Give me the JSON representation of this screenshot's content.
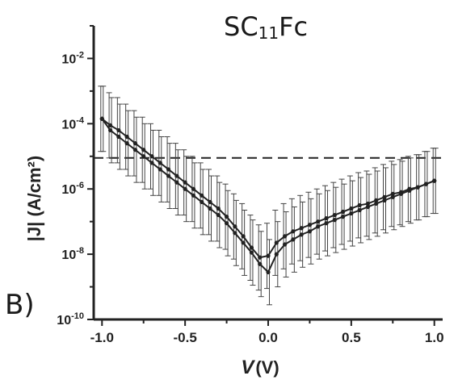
{
  "chart_data": {
    "type": "line",
    "title": "SC11Fc",
    "title_main": "SC",
    "title_sub": "11",
    "title_suffix": "Fc",
    "panel_label": "B)",
    "xlabel_var": "V",
    "xlabel_unit": "(V)",
    "ylabel": "|J| (A/cm²)",
    "xlim": [
      -1.05,
      1.05
    ],
    "ylim_log10": [
      -10,
      -1
    ],
    "y_scale": "log",
    "x_ticks": [
      "-1.0",
      "-0.5",
      "0.0",
      "0.5",
      "1.0"
    ],
    "y_ticks": [
      {
        "base": "10",
        "exp": "-2"
      },
      {
        "base": "10",
        "exp": "-4"
      },
      {
        "base": "10",
        "exp": "-6"
      },
      {
        "base": "10",
        "exp": "-8"
      },
      {
        "base": "10",
        "exp": "-10"
      }
    ],
    "reference_line": {
      "log10_y": -5.05,
      "style": "dashed"
    },
    "series": [
      {
        "x": [
          -1.0,
          -0.95,
          -0.9,
          -0.85,
          -0.8,
          -0.75,
          -0.7,
          -0.65,
          -0.6,
          -0.55,
          -0.5,
          -0.45,
          -0.4,
          -0.35,
          -0.3,
          -0.25,
          -0.2,
          -0.15,
          -0.1,
          -0.05,
          0.0,
          0.05,
          0.1,
          0.15,
          0.2,
          0.25,
          0.3,
          0.35,
          0.4,
          0.45,
          0.5,
          0.55,
          0.6,
          0.65,
          0.7,
          0.75,
          0.8,
          0.85,
          0.9,
          0.95,
          1.0
        ],
        "log10_y": [
          -3.85,
          -4.05,
          -4.2,
          -4.4,
          -4.6,
          -4.8,
          -5.0,
          -5.2,
          -5.4,
          -5.6,
          -5.8,
          -6.0,
          -6.2,
          -6.4,
          -6.6,
          -6.85,
          -7.15,
          -7.45,
          -7.8,
          -8.1,
          -8.05,
          -7.65,
          -7.45,
          -7.3,
          -7.2,
          -7.1,
          -7.0,
          -6.9,
          -6.8,
          -6.7,
          -6.6,
          -6.5,
          -6.45,
          -6.35,
          -6.25,
          -6.15,
          -6.1,
          -6.0,
          -5.95,
          -5.85,
          -5.75
        ],
        "log10_err": [
          1.0,
          1.0,
          1.0,
          1.0,
          1.0,
          1.0,
          1.0,
          1.0,
          1.0,
          1.0,
          1.0,
          1.0,
          1.0,
          1.0,
          1.0,
          1.0,
          1.0,
          1.0,
          1.0,
          1.0,
          1.0,
          1.0,
          1.0,
          1.0,
          1.0,
          1.0,
          1.0,
          1.0,
          1.0,
          1.0,
          1.0,
          1.0,
          1.0,
          1.0,
          1.0,
          1.0,
          1.0,
          1.0,
          1.0,
          1.0,
          1.0
        ]
      },
      {
        "x": [
          -1.0,
          -0.95,
          -0.9,
          -0.85,
          -0.8,
          -0.75,
          -0.7,
          -0.65,
          -0.6,
          -0.55,
          -0.5,
          -0.45,
          -0.4,
          -0.35,
          -0.3,
          -0.25,
          -0.2,
          -0.15,
          -0.1,
          -0.05,
          0.0,
          0.05,
          0.1,
          0.15,
          0.2,
          0.25,
          0.3,
          0.35,
          0.4,
          0.45,
          0.5,
          0.55,
          0.6,
          0.65,
          0.7,
          0.75,
          0.8,
          0.85,
          0.9,
          0.95,
          1.0
        ],
        "log10_y": [
          -3.85,
          -4.2,
          -4.4,
          -4.6,
          -4.8,
          -5.0,
          -5.2,
          -5.4,
          -5.6,
          -5.8,
          -6.0,
          -6.2,
          -6.4,
          -6.6,
          -6.8,
          -7.05,
          -7.35,
          -7.65,
          -7.95,
          -8.3,
          -8.55,
          -8.0,
          -7.7,
          -7.55,
          -7.4,
          -7.3,
          -7.15,
          -7.05,
          -6.95,
          -6.85,
          -6.75,
          -6.65,
          -6.55,
          -6.45,
          -6.35,
          -6.25,
          -6.15,
          -6.05,
          -5.95,
          -5.85,
          -5.75
        ],
        "log10_err": [
          1.0,
          1.0,
          1.0,
          1.0,
          1.0,
          1.0,
          1.0,
          1.0,
          1.0,
          1.0,
          1.0,
          1.0,
          1.0,
          1.0,
          1.0,
          1.0,
          1.0,
          1.0,
          1.0,
          1.0,
          1.0,
          1.0,
          1.0,
          1.0,
          1.0,
          1.0,
          1.0,
          1.0,
          1.0,
          1.0,
          1.0,
          1.0,
          1.0,
          1.0,
          1.0,
          1.0,
          1.0,
          1.0,
          1.0,
          1.0,
          1.0
        ]
      }
    ]
  }
}
